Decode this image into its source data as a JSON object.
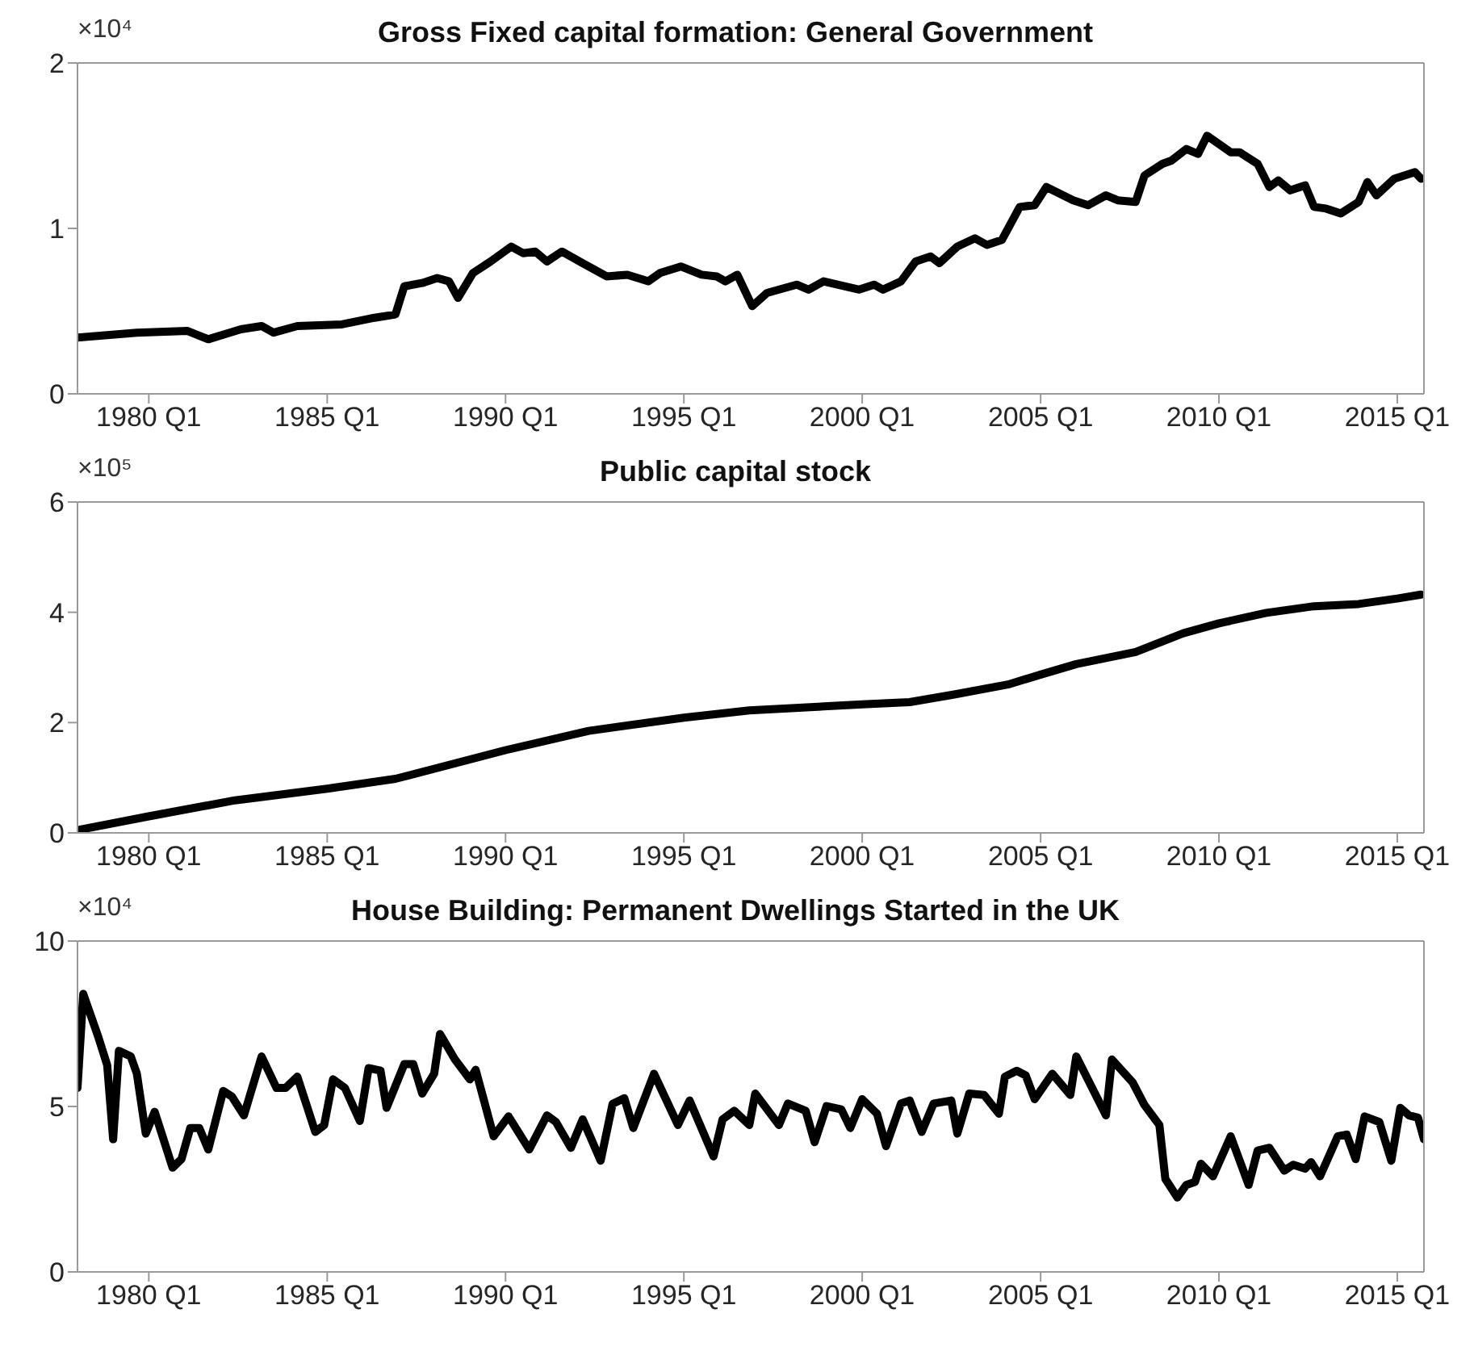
{
  "chart_data": [
    {
      "type": "line",
      "title": "Gross Fixed capital formation: General Government",
      "annotations": [
        "×10⁴"
      ],
      "color": "#000000",
      "x": [
        "1978-01",
        "1979-09",
        "1981-02",
        "1981-09",
        "1982-08",
        "1983-03",
        "1983-07",
        "1984-03",
        "1985-06",
        "1986-05",
        "1986-12",
        "1987-03",
        "1987-09",
        "1988-02",
        "1988-06",
        "1988-09",
        "1989-02",
        "1989-08",
        "1990-03",
        "1990-07",
        "1990-11",
        "1991-03",
        "1991-08",
        "1992-03",
        "1992-11",
        "1993-06",
        "1994-01",
        "1994-05",
        "1994-12",
        "1995-07",
        "1995-12",
        "1996-03",
        "1996-07",
        "1996-12",
        "1997-05",
        "1997-11",
        "1998-03",
        "1998-07",
        "1998-12",
        "1999-12",
        "2000-05",
        "2000-08",
        "2001-02",
        "2001-07",
        "2001-12",
        "2002-03",
        "2002-09",
        "2003-03",
        "2003-07",
        "2003-12",
        "2004-06",
        "2004-11",
        "2005-03",
        "2005-12",
        "2006-05",
        "2006-11",
        "2007-03",
        "2007-09",
        "2007-12",
        "2008-06",
        "2008-09",
        "2009-02",
        "2009-06",
        "2009-09",
        "2010-05",
        "2010-08",
        "2011-02",
        "2011-06",
        "2011-09",
        "2012-01",
        "2012-06",
        "2012-09",
        "2013-01",
        "2013-06",
        "2013-12",
        "2014-03",
        "2014-06",
        "2014-12",
        "2015-07",
        "2015-09"
      ],
      "values": [
        0.34,
        0.37,
        0.38,
        0.33,
        0.39,
        0.41,
        0.37,
        0.41,
        0.42,
        0.46,
        0.48,
        0.65,
        0.67,
        0.7,
        0.68,
        0.58,
        0.73,
        0.8,
        0.89,
        0.85,
        0.86,
        0.8,
        0.86,
        0.79,
        0.71,
        0.72,
        0.68,
        0.73,
        0.77,
        0.72,
        0.71,
        0.68,
        0.72,
        0.53,
        0.61,
        0.64,
        0.66,
        0.63,
        0.68,
        0.63,
        0.66,
        0.63,
        0.68,
        0.8,
        0.83,
        0.79,
        0.89,
        0.94,
        0.9,
        0.93,
        1.13,
        1.14,
        1.25,
        1.17,
        1.14,
        1.2,
        1.17,
        1.16,
        1.32,
        1.39,
        1.41,
        1.48,
        1.45,
        1.56,
        1.46,
        1.46,
        1.39,
        1.25,
        1.29,
        1.23,
        1.26,
        1.13,
        1.12,
        1.09,
        1.16,
        1.28,
        1.2,
        1.3,
        1.34,
        1.3
      ],
      "xlim": [
        "1978-01",
        "2015-10"
      ],
      "xticks": [
        {
          "value": "1980-01",
          "label": "1980 Q1"
        },
        {
          "value": "1985-01",
          "label": "1985 Q1"
        },
        {
          "value": "1990-01",
          "label": "1990 Q1"
        },
        {
          "value": "1995-01",
          "label": "1995 Q1"
        },
        {
          "value": "2000-01",
          "label": "2000 Q1"
        },
        {
          "value": "2005-01",
          "label": "2005 Q1"
        },
        {
          "value": "2010-01",
          "label": "2010 Q1"
        },
        {
          "value": "2015-01",
          "label": "2015 Q1"
        }
      ],
      "ylim": [
        0,
        2
      ],
      "yticks": [
        0,
        1,
        2
      ]
    },
    {
      "type": "line",
      "title": "Public capital stock",
      "annotations": [
        "×10⁵"
      ],
      "color": "#000000",
      "x": [
        "1978-01",
        "1980-01",
        "1982-06",
        "1985-01",
        "1986-12",
        "1990-01",
        "1992-05",
        "1995-01",
        "1996-11",
        "2000-01",
        "2001-05",
        "2002-08",
        "2004-02",
        "2005-01",
        "2006-01",
        "2007-09",
        "2009-01",
        "2010-01",
        "2011-05",
        "2012-09",
        "2013-12",
        "2015-01",
        "2015-09"
      ],
      "values": [
        0.05,
        0.3,
        0.59,
        0.8,
        0.98,
        1.5,
        1.85,
        2.09,
        2.22,
        2.33,
        2.37,
        2.51,
        2.69,
        2.87,
        3.06,
        3.28,
        3.62,
        3.8,
        3.99,
        4.11,
        4.15,
        4.25,
        4.32
      ],
      "xlim": [
        "1978-01",
        "2015-10"
      ],
      "xticks": [
        {
          "value": "1980-01",
          "label": "1980 Q1"
        },
        {
          "value": "1985-01",
          "label": "1985 Q1"
        },
        {
          "value": "1990-01",
          "label": "1990 Q1"
        },
        {
          "value": "1995-01",
          "label": "1995 Q1"
        },
        {
          "value": "2000-01",
          "label": "2000 Q1"
        },
        {
          "value": "2005-01",
          "label": "2005 Q1"
        },
        {
          "value": "2010-01",
          "label": "2010 Q1"
        },
        {
          "value": "2015-01",
          "label": "2015 Q1"
        }
      ],
      "ylim": [
        0,
        6
      ],
      "yticks": [
        0,
        2,
        4,
        6
      ]
    },
    {
      "type": "line",
      "title": "House Building: Permanent Dwellings Started in the UK",
      "annotations": [
        "×10⁴"
      ],
      "color": "#000000",
      "x": [
        "1978-01",
        "1978-03",
        "1978-08",
        "1978-11",
        "1979-01",
        "1979-03",
        "1979-07",
        "1979-09",
        "1979-12",
        "1980-03",
        "1980-09",
        "1980-12",
        "1981-03",
        "1981-06",
        "1981-09",
        "1982-02",
        "1982-05",
        "1982-09",
        "1983-03",
        "1983-08",
        "1983-11",
        "1984-03",
        "1984-09",
        "1984-12",
        "1985-03",
        "1985-07",
        "1985-12",
        "1986-03",
        "1986-07",
        "1986-09",
        "1987-03",
        "1987-06",
        "1987-09",
        "1988-01",
        "1988-03",
        "1988-08",
        "1989-01",
        "1989-03",
        "1989-09",
        "1990-02",
        "1990-09",
        "1991-03",
        "1991-06",
        "1991-11",
        "1992-03",
        "1992-09",
        "1993-01",
        "1993-05",
        "1993-08",
        "1994-03",
        "1994-11",
        "1995-03",
        "1995-11",
        "1996-02",
        "1996-06",
        "1996-11",
        "1997-01",
        "1997-09",
        "1997-12",
        "1998-06",
        "1998-09",
        "1999-01",
        "1999-06",
        "1999-09",
        "2000-01",
        "2000-06",
        "2000-09",
        "2001-02",
        "2001-05",
        "2001-09",
        "2002-01",
        "2002-07",
        "2002-09",
        "2003-01",
        "2003-06",
        "2003-11",
        "2004-01",
        "2004-05",
        "2004-08",
        "2004-11",
        "2005-05",
        "2005-11",
        "2006-01",
        "2006-11",
        "2007-01",
        "2007-08",
        "2007-12",
        "2008-05",
        "2008-07",
        "2008-11",
        "2009-02",
        "2009-05",
        "2009-07",
        "2009-11",
        "2010-05",
        "2010-11",
        "2011-02",
        "2011-06",
        "2011-11",
        "2012-02",
        "2012-06",
        "2012-08",
        "2012-11",
        "2013-05",
        "2013-08",
        "2013-11",
        "2014-02",
        "2014-07",
        "2014-11",
        "2015-02",
        "2015-05",
        "2015-08",
        "2015-10"
      ],
      "values": [
        5.56,
        8.4,
        7.11,
        6.25,
        4.01,
        6.68,
        6.51,
        5.99,
        4.18,
        4.84,
        3.15,
        3.41,
        4.35,
        4.35,
        3.7,
        5.47,
        5.3,
        4.73,
        6.51,
        5.56,
        5.56,
        5.9,
        4.23,
        4.44,
        5.82,
        5.56,
        4.56,
        6.16,
        6.08,
        4.96,
        6.28,
        6.28,
        5.39,
        5.99,
        7.19,
        6.42,
        5.82,
        6.11,
        4.1,
        4.7,
        3.7,
        4.73,
        4.53,
        3.75,
        4.61,
        3.36,
        5.08,
        5.25,
        4.35,
        5.99,
        4.44,
        5.18,
        3.49,
        4.61,
        4.87,
        4.44,
        5.39,
        4.44,
        5.09,
        4.87,
        3.92,
        5.01,
        4.91,
        4.35,
        5.22,
        4.78,
        3.8,
        5.09,
        5.18,
        4.23,
        5.09,
        5.18,
        4.18,
        5.39,
        5.35,
        4.78,
        5.9,
        6.08,
        5.94,
        5.22,
        5.99,
        5.35,
        6.51,
        4.73,
        6.42,
        5.73,
        5.04,
        4.44,
        2.81,
        2.25,
        2.63,
        2.72,
        3.27,
        2.89,
        4.1,
        2.63,
        3.67,
        3.75,
        3.06,
        3.24,
        3.12,
        3.32,
        2.89,
        4.1,
        4.15,
        3.41,
        4.7,
        4.53,
        3.36,
        4.96,
        4.73,
        4.66,
        4.01
      ],
      "xlim": [
        "1978-01",
        "2015-10"
      ],
      "xticks": [
        {
          "value": "1980-01",
          "label": "1980 Q1"
        },
        {
          "value": "1985-01",
          "label": "1985 Q1"
        },
        {
          "value": "1990-01",
          "label": "1990 Q1"
        },
        {
          "value": "1995-01",
          "label": "1995 Q1"
        },
        {
          "value": "2000-01",
          "label": "2000 Q1"
        },
        {
          "value": "2005-01",
          "label": "2005 Q1"
        },
        {
          "value": "2010-01",
          "label": "2010 Q1"
        },
        {
          "value": "2015-01",
          "label": "2015 Q1"
        }
      ],
      "ylim": [
        0,
        10
      ],
      "yticks": [
        0,
        5,
        10
      ]
    }
  ]
}
